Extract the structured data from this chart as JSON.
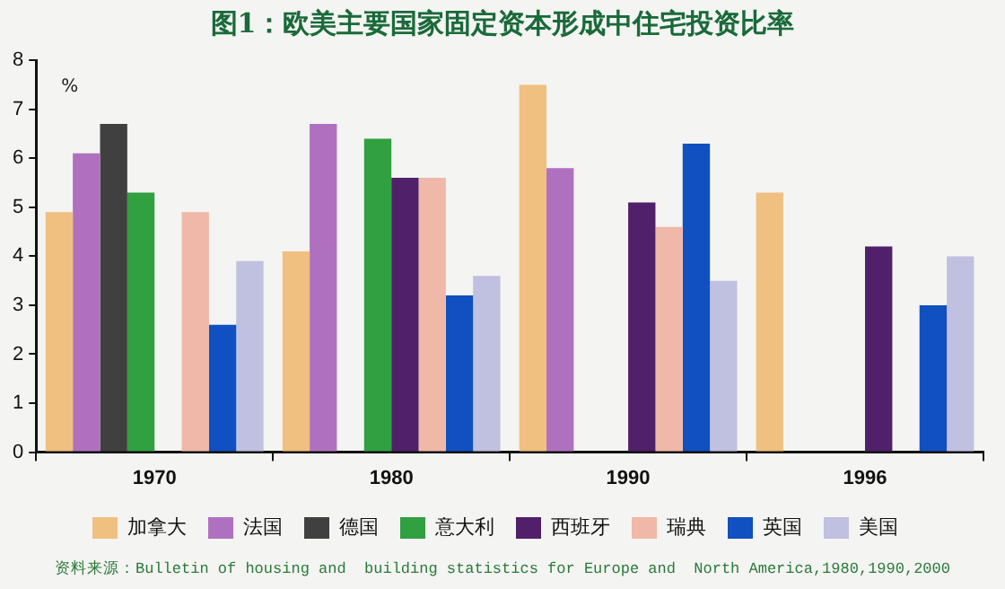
{
  "chart_data": {
    "type": "bar",
    "title": "图1：欧美主要国家固定资本形成中住宅投资比率",
    "ylabel": "%",
    "categories": [
      "1970",
      "1980",
      "1990",
      "1996"
    ],
    "series": [
      {
        "name": "加拿大",
        "color": "#f0c080",
        "values": [
          4.9,
          4.1,
          7.5,
          5.3
        ]
      },
      {
        "name": "法国",
        "color": "#b070c0",
        "values": [
          6.1,
          6.7,
          5.8,
          null
        ]
      },
      {
        "name": "德国",
        "color": "#404040",
        "values": [
          6.7,
          null,
          null,
          null
        ]
      },
      {
        "name": "意大利",
        "color": "#30a040",
        "values": [
          5.3,
          6.4,
          null,
          null
        ]
      },
      {
        "name": "西班牙",
        "color": "#50206a",
        "values": [
          null,
          5.6,
          5.1,
          4.2
        ]
      },
      {
        "name": "瑞典",
        "color": "#f0b8a8",
        "values": [
          4.9,
          5.6,
          4.6,
          null
        ]
      },
      {
        "name": "英国",
        "color": "#1050c0",
        "values": [
          2.6,
          3.2,
          6.3,
          3.0
        ]
      },
      {
        "name": "美国",
        "color": "#c0c0e0",
        "values": [
          3.9,
          3.6,
          3.5,
          4.0
        ]
      }
    ],
    "ylim": [
      0,
      8
    ],
    "yticks": [
      0,
      1,
      2,
      3,
      4,
      5,
      6,
      7,
      8
    ],
    "grid": false,
    "legend": "bottom",
    "annotations": [
      "资料来源：Bulletin of housing and  building statistics for Europe and  North America,1980,1990,2000"
    ]
  }
}
